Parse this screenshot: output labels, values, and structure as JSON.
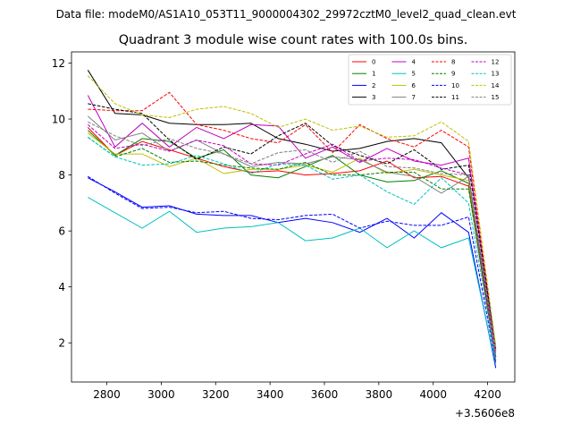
{
  "suptitle": "Data file: modeM0/AS1A10_053T11_9000004302_29972cztM0_level2_quad_clean.evt",
  "chart_data": {
    "type": "line",
    "title": "Quadrant 3 module wise count rates with 100.0s bins.",
    "xlabel": "",
    "ylabel": "",
    "x_offset_label": "+3.5606e8",
    "xlim": [
      2670,
      4300
    ],
    "ylim": [
      0.6,
      12.4
    ],
    "xticks": [
      2800,
      3000,
      3200,
      3400,
      3600,
      3800,
      4000,
      4200
    ],
    "yticks": [
      2,
      4,
      6,
      8,
      10,
      12
    ],
    "grid": false,
    "legend_location": "top-right",
    "legend_columns": 4,
    "x": [
      2730,
      2830,
      2930,
      3030,
      3130,
      3230,
      3330,
      3430,
      3530,
      3630,
      3730,
      3830,
      3930,
      4030,
      4130,
      4230
    ],
    "series": [
      {
        "name": "0",
        "color": "#ff0000",
        "style": "solid",
        "values": [
          9.7,
          8.7,
          9.2,
          8.9,
          8.6,
          8.3,
          8.1,
          8.15,
          8.0,
          8.05,
          8.15,
          8.5,
          7.9,
          7.95,
          7.6,
          1.3
        ]
      },
      {
        "name": "1",
        "color": "#008000",
        "style": "solid",
        "values": [
          9.6,
          8.7,
          9.3,
          9.2,
          8.6,
          8.9,
          8.0,
          7.9,
          8.3,
          8.7,
          8.0,
          7.75,
          7.8,
          8.15,
          7.7,
          1.5
        ]
      },
      {
        "name": "2",
        "color": "#0000ff",
        "style": "solid",
        "values": [
          7.9,
          7.4,
          6.85,
          6.9,
          6.6,
          6.55,
          6.55,
          6.3,
          6.45,
          6.3,
          5.95,
          6.45,
          5.75,
          6.65,
          5.95,
          1.1
        ]
      },
      {
        "name": "3",
        "color": "#000000",
        "style": "solid",
        "values": [
          11.75,
          10.2,
          10.15,
          9.85,
          9.8,
          9.8,
          9.85,
          9.3,
          9.1,
          8.85,
          8.95,
          9.2,
          9.3,
          9.15,
          7.9,
          1.7
        ]
      },
      {
        "name": "4",
        "color": "#c000c0",
        "style": "solid",
        "values": [
          10.85,
          9.0,
          9.85,
          9.0,
          9.7,
          9.3,
          9.8,
          9.75,
          8.6,
          9.0,
          8.45,
          8.95,
          8.5,
          8.35,
          8.6,
          1.75
        ]
      },
      {
        "name": "5",
        "color": "#00c0c0",
        "style": "solid",
        "values": [
          7.2,
          6.65,
          6.1,
          6.7,
          5.95,
          6.1,
          6.15,
          6.3,
          5.65,
          5.75,
          6.1,
          5.4,
          6.0,
          5.4,
          5.75,
          1.2
        ]
      },
      {
        "name": "6",
        "color": "#c0c000",
        "style": "solid",
        "values": [
          9.5,
          8.75,
          8.75,
          8.3,
          8.6,
          8.05,
          8.2,
          8.2,
          8.35,
          8.1,
          8.6,
          8.05,
          8.2,
          8.0,
          7.8,
          1.6
        ]
      },
      {
        "name": "7",
        "color": "#808080",
        "style": "solid",
        "values": [
          10.1,
          9.25,
          9.5,
          8.85,
          9.25,
          8.75,
          8.3,
          8.45,
          8.4,
          8.65,
          8.55,
          8.1,
          7.95,
          7.35,
          7.95,
          1.4
        ]
      },
      {
        "name": "8",
        "color": "#ff0000",
        "style": "dashed",
        "values": [
          10.35,
          10.3,
          10.3,
          10.95,
          9.8,
          9.6,
          9.3,
          9.15,
          9.8,
          8.8,
          9.8,
          9.3,
          9.0,
          9.6,
          9.0,
          1.65
        ]
      },
      {
        "name": "9",
        "color": "#008000",
        "style": "dashed",
        "values": [
          9.35,
          8.65,
          8.95,
          8.45,
          8.5,
          8.35,
          8.25,
          8.2,
          8.45,
          8.0,
          8.0,
          8.1,
          8.1,
          7.5,
          7.5,
          1.5
        ]
      },
      {
        "name": "10",
        "color": "#0000ff",
        "style": "dashed",
        "values": [
          7.95,
          7.35,
          6.8,
          6.85,
          6.65,
          6.7,
          6.45,
          6.4,
          6.55,
          6.6,
          6.1,
          6.35,
          6.2,
          6.2,
          6.5,
          1.3
        ]
      },
      {
        "name": "11",
        "color": "#000000",
        "style": "dashed",
        "values": [
          10.55,
          10.35,
          10.2,
          9.25,
          8.55,
          9.0,
          8.75,
          9.4,
          9.85,
          9.05,
          8.7,
          8.4,
          8.9,
          8.2,
          8.35,
          1.8
        ]
      },
      {
        "name": "12",
        "color": "#c000c0",
        "style": "dashed",
        "values": [
          9.8,
          8.95,
          9.1,
          8.85,
          9.25,
          9.05,
          8.4,
          8.35,
          8.75,
          9.1,
          8.5,
          8.6,
          8.55,
          8.25,
          8.0,
          1.5
        ]
      },
      {
        "name": "13",
        "color": "#00c0c0",
        "style": "dashed",
        "values": [
          9.35,
          8.65,
          8.35,
          8.4,
          8.7,
          8.4,
          8.05,
          8.4,
          8.35,
          7.85,
          8.0,
          7.4,
          6.95,
          7.9,
          7.0,
          1.4
        ]
      },
      {
        "name": "14",
        "color": "#c0c000",
        "style": "dashed",
        "values": [
          11.55,
          10.55,
          10.15,
          10.05,
          10.35,
          10.45,
          10.2,
          9.7,
          10.0,
          9.6,
          9.75,
          9.35,
          9.4,
          9.9,
          9.2,
          1.9
        ]
      },
      {
        "name": "15",
        "color": "#808080",
        "style": "dashed",
        "values": [
          9.9,
          9.4,
          9.05,
          9.3,
          8.95,
          8.75,
          8.4,
          8.8,
          8.9,
          8.45,
          8.85,
          8.3,
          8.25,
          8.05,
          8.0,
          1.7
        ]
      }
    ]
  }
}
